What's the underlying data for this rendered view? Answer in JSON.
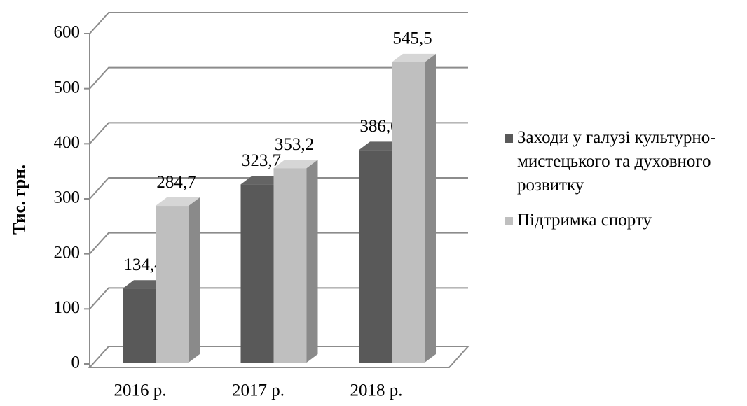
{
  "chart_data": {
    "type": "bar3d",
    "y_label": "Тис. грн.",
    "categories": [
      "2016 р.",
      "2017 р.",
      "2018 р."
    ],
    "series": [
      {
        "name": "Заходи у галузі культурно-мистецького та духовного розвитку",
        "color": "#595959",
        "values": [
          134.4,
          323.7,
          386.0
        ],
        "value_labels": [
          "134,4",
          "323,7",
          "386,0"
        ]
      },
      {
        "name": "Підтримка спорту",
        "color": "#bfbfbf",
        "values": [
          284.7,
          353.2,
          545.5
        ],
        "value_labels": [
          "284,7",
          "353,2",
          "545,5"
        ]
      }
    ],
    "ylim": [
      0,
      600
    ],
    "yticks": [
      0,
      100,
      200,
      300,
      400,
      500,
      600
    ],
    "grid": true,
    "legend": "right"
  }
}
